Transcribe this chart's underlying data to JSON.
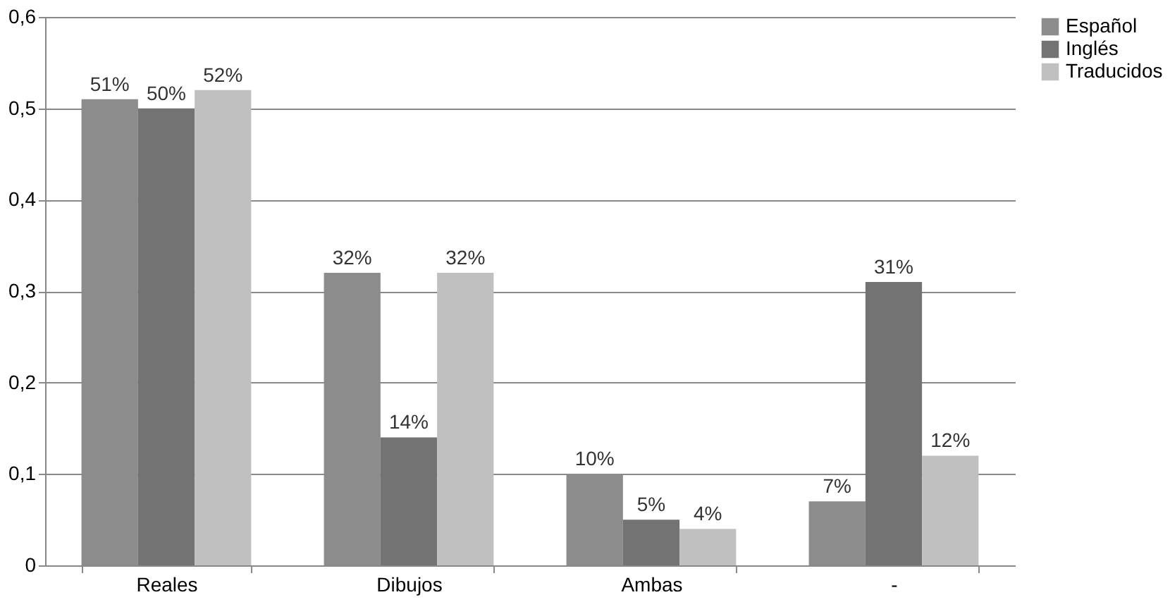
{
  "chart_data": {
    "type": "bar",
    "categories": [
      "Reales",
      "Dibujos",
      "Ambas",
      "-"
    ],
    "series": [
      {
        "name": "Español",
        "color": "#8c8c8c",
        "values": [
          0.51,
          0.32,
          0.1,
          0.07
        ],
        "value_labels": [
          "51%",
          "32%",
          "10%",
          "7%"
        ]
      },
      {
        "name": "Inglés",
        "color": "#737373",
        "values": [
          0.5,
          0.14,
          0.05,
          0.31
        ],
        "value_labels": [
          "50%",
          "14%",
          "5%",
          "31%"
        ]
      },
      {
        "name": "Traducidos",
        "color": "#c0c0c0",
        "values": [
          0.52,
          0.32,
          0.04,
          0.12
        ],
        "value_labels": [
          "52%",
          "32%",
          "4%",
          "12%"
        ]
      }
    ],
    "ylim": [
      0,
      0.6
    ],
    "yticks": [
      0,
      {
        "value": 0.1,
        "label": "0,1"
      },
      {
        "value": 0.2,
        "label": "0,2"
      },
      {
        "value": 0.3,
        "label": "0,3"
      },
      {
        "value": 0.4,
        "label": "0,4"
      },
      {
        "value": 0.5,
        "label": "0,5"
      },
      {
        "value": 0.6,
        "label": "0,6"
      }
    ],
    "grid": "y",
    "legend": "right"
  }
}
